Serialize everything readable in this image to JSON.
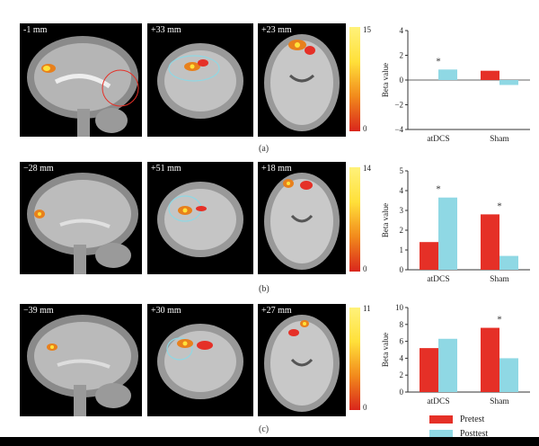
{
  "colors": {
    "pretest": "#e53027",
    "posttest": "#8fd8e4"
  },
  "legend": {
    "pretest": "Pretest",
    "posttest": "Posttest"
  },
  "rows": [
    {
      "caption": "(a)",
      "slices": [
        "-1 mm",
        "+33 mm",
        "+23 mm"
      ],
      "colorbar": {
        "max": "15",
        "min": "0"
      },
      "chart_data": {
        "type": "bar",
        "categories": [
          "atDCS",
          "Sham"
        ],
        "series": [
          {
            "name": "Pretest",
            "values": [
              0,
              0.75
            ]
          },
          {
            "name": "Posttest",
            "values": [
              0.85,
              -0.4
            ]
          }
        ],
        "ylabel": "Beta value",
        "ylim": [
          -4,
          4
        ],
        "yticks": [
          "4",
          "2",
          "0",
          "−2",
          "−4"
        ],
        "ytick_values": [
          4,
          2,
          0,
          -2,
          -4
        ],
        "significance": [
          "*",
          ""
        ]
      }
    },
    {
      "caption": "(b)",
      "slices": [
        "−28 mm",
        "+51 mm",
        "+18 mm"
      ],
      "colorbar": {
        "max": "14",
        "min": "0"
      },
      "chart_data": {
        "type": "bar",
        "categories": [
          "atDCS",
          "Sham"
        ],
        "series": [
          {
            "name": "Pretest",
            "values": [
              1.4,
              2.8
            ]
          },
          {
            "name": "Posttest",
            "values": [
              3.65,
              0.7
            ]
          }
        ],
        "ylabel": "Beta value",
        "ylim": [
          0,
          5
        ],
        "yticks": [
          "5",
          "4",
          "3",
          "2",
          "1",
          "0"
        ],
        "ytick_values": [
          5,
          4,
          3,
          2,
          1,
          0
        ],
        "significance": [
          "*",
          "*"
        ]
      }
    },
    {
      "caption": "(c)",
      "slices": [
        "−39 mm",
        "+30 mm",
        "+27 mm"
      ],
      "colorbar": {
        "max": "11",
        "min": "0"
      },
      "chart_data": {
        "type": "bar",
        "categories": [
          "atDCS",
          "Sham"
        ],
        "series": [
          {
            "name": "Pretest",
            "values": [
              5.2,
              7.6
            ]
          },
          {
            "name": "Posttest",
            "values": [
              6.3,
              4.0
            ]
          }
        ],
        "ylabel": "Beta value",
        "ylim": [
          0,
          10
        ],
        "yticks": [
          "10",
          "8",
          "6",
          "4",
          "2",
          "0"
        ],
        "ytick_values": [
          10,
          8,
          6,
          4,
          2,
          0
        ],
        "significance": [
          "",
          "*"
        ]
      }
    }
  ]
}
